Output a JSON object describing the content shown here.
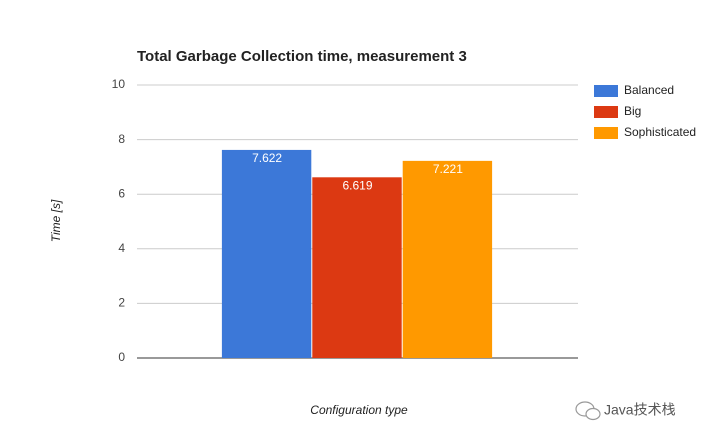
{
  "chart_data": {
    "type": "bar",
    "title": "Total Garbage Collection time, measurement 3",
    "x_label": "Configuration type",
    "y_label": "Time [s]",
    "categories": [
      null
    ],
    "series": [
      {
        "name": "Balanced",
        "color": "#3c78d8",
        "values": [
          7.622
        ]
      },
      {
        "name": "Big",
        "color": "#dc3912",
        "values": [
          6.619
        ]
      },
      {
        "name": "Sophisticated",
        "color": "#ff9900",
        "values": [
          7.221
        ]
      }
    ],
    "ylim": [
      0,
      10
    ],
    "yticks": [
      0,
      2,
      4,
      6,
      8,
      10
    ],
    "grid": true,
    "legend": "right",
    "watermark": "Java技术栈"
  }
}
